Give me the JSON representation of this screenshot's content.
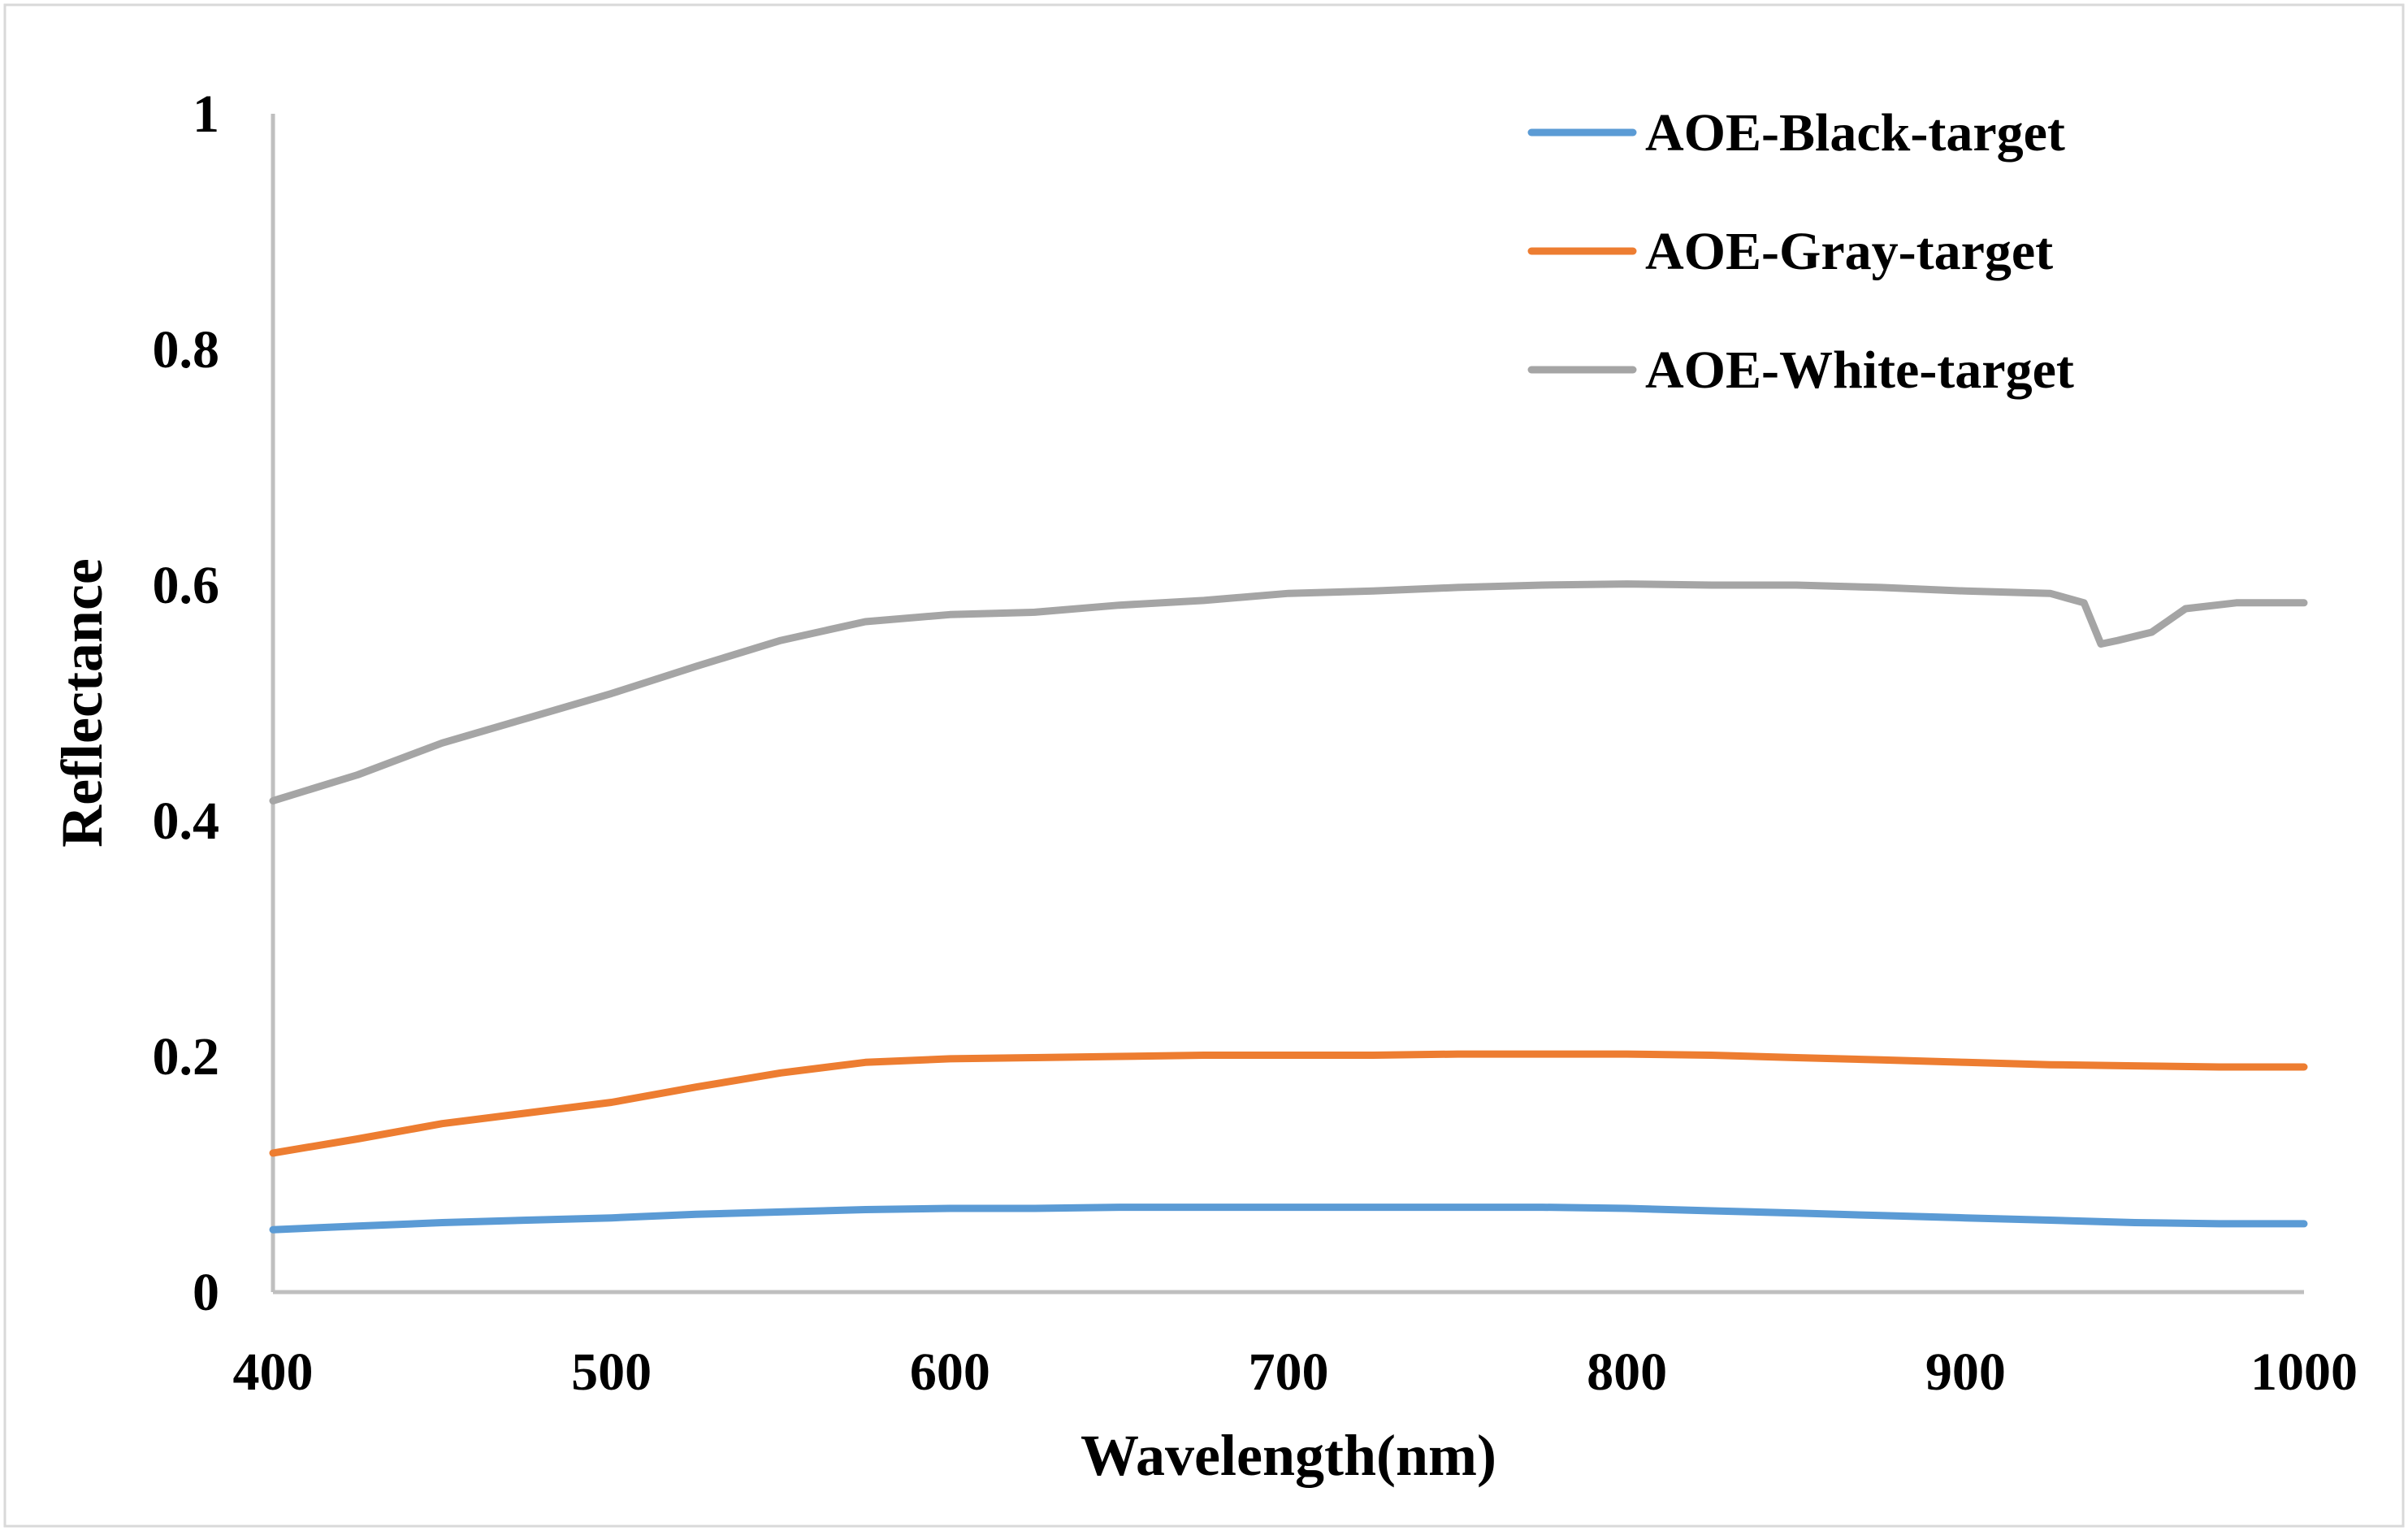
{
  "chart_data": {
    "type": "line",
    "title": "",
    "xlabel": "Wavelength(nm)",
    "ylabel": "Reflectance",
    "xlim": [
      400,
      1000
    ],
    "ylim": [
      0,
      1
    ],
    "xticks": [
      "400",
      "500",
      "600",
      "700",
      "800",
      "900",
      "1000"
    ],
    "yticks": [
      "0",
      "0.2",
      "0.4",
      "0.6",
      "0.8",
      "1"
    ],
    "grid": false,
    "legend_position": "top-right",
    "series": [
      {
        "name": "AOE-Black-target",
        "color": "#5B9BD5",
        "x": [
          400,
          425,
          450,
          475,
          500,
          525,
          550,
          575,
          600,
          625,
          650,
          675,
          700,
          725,
          750,
          775,
          800,
          825,
          850,
          875,
          900,
          925,
          950,
          975,
          1000
        ],
        "y": [
          0.053,
          0.056,
          0.059,
          0.061,
          0.063,
          0.066,
          0.068,
          0.07,
          0.071,
          0.071,
          0.072,
          0.072,
          0.072,
          0.072,
          0.072,
          0.072,
          0.071,
          0.069,
          0.067,
          0.065,
          0.063,
          0.061,
          0.059,
          0.058,
          0.058
        ]
      },
      {
        "name": "AOE-Gray-target",
        "color": "#ED7D31",
        "x": [
          400,
          425,
          450,
          475,
          500,
          525,
          550,
          575,
          600,
          625,
          650,
          675,
          700,
          725,
          750,
          775,
          800,
          825,
          850,
          875,
          900,
          925,
          950,
          975,
          1000
        ],
        "y": [
          0.118,
          0.13,
          0.143,
          0.152,
          0.161,
          0.174,
          0.186,
          0.195,
          0.198,
          0.199,
          0.2,
          0.201,
          0.201,
          0.201,
          0.202,
          0.202,
          0.202,
          0.201,
          0.199,
          0.197,
          0.195,
          0.193,
          0.192,
          0.191,
          0.191
        ]
      },
      {
        "name": "AOE-White-target",
        "color": "#A5A5A5",
        "x": [
          400,
          425,
          450,
          475,
          500,
          525,
          550,
          575,
          600,
          625,
          650,
          675,
          700,
          725,
          750,
          775,
          800,
          825,
          850,
          875,
          900,
          925,
          935,
          940,
          945,
          955,
          965,
          980,
          1000
        ],
        "y": [
          0.417,
          0.439,
          0.466,
          0.487,
          0.508,
          0.531,
          0.553,
          0.569,
          0.575,
          0.577,
          0.583,
          0.587,
          0.593,
          0.595,
          0.598,
          0.6,
          0.601,
          0.6,
          0.6,
          0.598,
          0.595,
          0.593,
          0.585,
          0.55,
          0.553,
          0.56,
          0.58,
          0.585,
          0.585
        ]
      }
    ]
  }
}
